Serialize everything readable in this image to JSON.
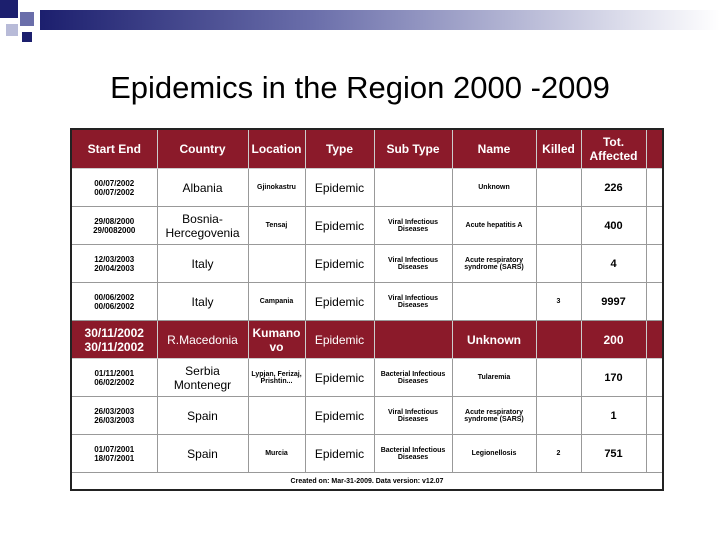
{
  "title": "Epidemics in the Region 2000 -2009",
  "table": {
    "header": [
      "Start End",
      "Country",
      "Location",
      "Type",
      "Sub Type",
      "Name",
      "Killed",
      "Tot. Affected"
    ],
    "rows": [
      [
        "00/07/2002\n00/07/2002",
        "Albania",
        "Gjinokastru",
        "Epidemic",
        null,
        "Unknown",
        null,
        226
      ],
      [
        "29/08/2000\n29/0082000",
        "Bosnia-Hercegovenia",
        "Tensaj",
        "Epidemic",
        "Viral Infectious Diseases",
        "Acute hepatitis A",
        null,
        400
      ],
      [
        "12/03/2003\n20/04/2003",
        "Italy",
        null,
        "Epidemic",
        "Viral Infectious Diseases",
        "Acute respiratory syndrome (SARS)",
        null,
        4
      ],
      [
        "00/06/2002\n00/06/2002",
        "Italy",
        "Campania",
        "Epidemic",
        "Viral Infectious Diseases",
        null,
        3,
        9997
      ],
      [
        "30/11/2002\n30/11/2002",
        "R.Macedonia",
        "Kumanovo",
        "Epidemic",
        null,
        "Unknown",
        null,
        200
      ],
      [
        "01/11/2001\n06/02/2002",
        "Serbia Montenegr",
        "Lypjan, Ferizaj, Prishtin...",
        "Epidemic",
        "Bacterial Infectious Diseases",
        "Tularemia",
        null,
        170
      ],
      [
        "26/03/2003\n26/03/2003",
        "Spain",
        null,
        "Epidemic",
        "Viral Infectious Diseases",
        "Acute respiratory syndrome (SARS)",
        null,
        1
      ],
      [
        "01/07/2001\n18/07/2001",
        "Spain",
        "Murcia",
        "Epidemic",
        "Bacterial Infectious Diseases",
        "Legionellosis",
        2,
        751
      ]
    ],
    "highlight_row": 4,
    "footer": "Created on: Mar-31-2009. Data version: v12.07"
  }
}
